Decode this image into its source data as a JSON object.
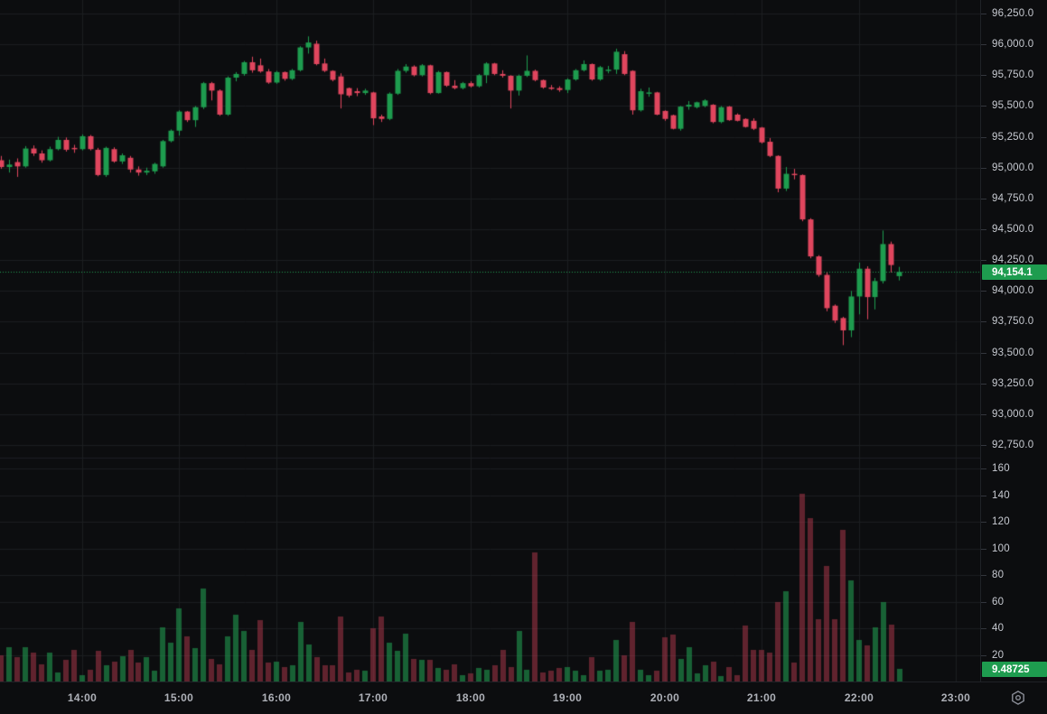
{
  "colors": {
    "background": "#0c0d0f",
    "grid": "#1b1d21",
    "axis_border": "#1f2227",
    "axis_text": "#c7cad1",
    "time_text": "#aeb1b8",
    "candle_up": "#1e9c4f",
    "candle_down": "#e0465e",
    "volume_up": "rgba(32,150,78,0.62)",
    "volume_down": "rgba(200,62,84,0.45)",
    "last_price_line": "#1e9c4f",
    "badge_up_bg": "#1e9c4f",
    "badge_text": "#ffffff",
    "icon_gray": "#8b8e98"
  },
  "price_axis": {
    "ticks": [
      [
        "96,250.0",
        96250
      ],
      [
        "96,000.0",
        96000
      ],
      [
        "95,750.0",
        95750
      ],
      [
        "95,500.0",
        95500
      ],
      [
        "95,250.0",
        95250
      ],
      [
        "95,000.0",
        95000
      ],
      [
        "94,750.0",
        94750
      ],
      [
        "94,500.0",
        94500
      ],
      [
        "94,250.0",
        94250
      ],
      [
        "94,000.0",
        94000
      ],
      [
        "93,750.0",
        93750
      ],
      [
        "93,500.0",
        93500
      ],
      [
        "93,250.0",
        93250
      ],
      [
        "93,000.0",
        93000
      ],
      [
        "92,750.0",
        92750
      ]
    ]
  },
  "volume_axis": {
    "ticks": [
      [
        "160",
        160
      ],
      [
        "140",
        140
      ],
      [
        "120",
        120
      ],
      [
        "100",
        100
      ],
      [
        "80",
        80
      ],
      [
        "60",
        60
      ],
      [
        "40",
        40
      ],
      [
        "20",
        20
      ]
    ]
  },
  "time_axis": {
    "ticks": [
      [
        "14:00",
        840
      ],
      [
        "15:00",
        900
      ],
      [
        "16:00",
        960
      ],
      [
        "17:00",
        1020
      ],
      [
        "18:00",
        1080
      ],
      [
        "19:00",
        1140
      ],
      [
        "20:00",
        1200
      ],
      [
        "21:00",
        1260
      ],
      [
        "22:00",
        1320
      ],
      [
        "23:00",
        1380
      ]
    ]
  },
  "badges": {
    "last_price": {
      "text": "94,154.1",
      "value": 94154.1
    },
    "last_volume": {
      "text": "9.48725",
      "value": 9.48725
    }
  },
  "toolbar": {
    "settings_icon": "hexagon-settings"
  },
  "chart_data": {
    "type": "candlestick",
    "interval": "5m",
    "session_start_minutes": 790,
    "price_axis_top": 96250,
    "price_axis_bottom": 92750,
    "price_tick_step": 250,
    "volume_axis_max": 160,
    "grid": true,
    "last_price": 94154.1,
    "candles": [
      [
        "13:10",
        95060,
        95095,
        94990,
        95005,
        20
      ],
      [
        "13:15",
        95005,
        95065,
        94960,
        95025,
        26
      ],
      [
        "13:20",
        95045,
        95075,
        94925,
        95010,
        18
      ],
      [
        "13:25",
        95010,
        95175,
        95000,
        95155,
        26
      ],
      [
        "13:30",
        95155,
        95180,
        95095,
        95115,
        22
      ],
      [
        "13:35",
        95115,
        95140,
        95040,
        95060,
        13
      ],
      [
        "13:40",
        95060,
        95170,
        95050,
        95150,
        22
      ],
      [
        "13:45",
        95150,
        95250,
        95140,
        95225,
        7
      ],
      [
        "13:50",
        95225,
        95245,
        95130,
        95145,
        16
      ],
      [
        "13:55",
        95160,
        95185,
        95120,
        95150,
        24
      ],
      [
        "14:00",
        95150,
        95270,
        95140,
        95255,
        5
      ],
      [
        "14:05",
        95255,
        95265,
        95140,
        95150,
        9
      ],
      [
        "14:10",
        95145,
        95160,
        94930,
        94940,
        23
      ],
      [
        "14:15",
        94940,
        95170,
        94925,
        95160,
        12
      ],
      [
        "14:20",
        95150,
        95165,
        95040,
        95050,
        15
      ],
      [
        "14:25",
        95050,
        95115,
        95030,
        95100,
        19
      ],
      [
        "14:30",
        95080,
        95095,
        94960,
        94985,
        24
      ],
      [
        "14:35",
        94985,
        95010,
        94935,
        94960,
        14
      ],
      [
        "14:40",
        94960,
        95000,
        94940,
        94975,
        18
      ],
      [
        "14:45",
        94970,
        95040,
        94950,
        95030,
        8
      ],
      [
        "14:50",
        95010,
        95225,
        95000,
        95215,
        41
      ],
      [
        "14:55",
        95215,
        95310,
        95205,
        95300,
        29
      ],
      [
        "15:00",
        95300,
        95465,
        95260,
        95455,
        55
      ],
      [
        "15:05",
        95455,
        95460,
        95370,
        95385,
        34
      ],
      [
        "15:10",
        95385,
        95500,
        95330,
        95490,
        25
      ],
      [
        "15:15",
        95490,
        95695,
        95475,
        95685,
        70
      ],
      [
        "15:20",
        95685,
        95695,
        95545,
        95625,
        17
      ],
      [
        "15:25",
        95625,
        95635,
        95420,
        95430,
        13
      ],
      [
        "15:30",
        95430,
        95740,
        95420,
        95730,
        34
      ],
      [
        "15:35",
        95730,
        95775,
        95700,
        95760,
        50
      ],
      [
        "15:40",
        95760,
        95865,
        95745,
        95855,
        38
      ],
      [
        "15:45",
        95855,
        95900,
        95770,
        95790,
        24
      ],
      [
        "15:50",
        95830,
        95885,
        95770,
        95780,
        46
      ],
      [
        "15:55",
        95780,
        95800,
        95680,
        95690,
        14
      ],
      [
        "16:00",
        95690,
        95785,
        95680,
        95775,
        15
      ],
      [
        "16:05",
        95775,
        95780,
        95705,
        95720,
        11
      ],
      [
        "16:10",
        95720,
        95800,
        95710,
        95790,
        12
      ],
      [
        "16:15",
        95790,
        95985,
        95780,
        95975,
        45
      ],
      [
        "16:20",
        95975,
        96065,
        95925,
        96015,
        28
      ],
      [
        "16:25",
        96005,
        96030,
        95830,
        95840,
        18
      ],
      [
        "16:30",
        95845,
        95885,
        95775,
        95785,
        12
      ],
      [
        "16:35",
        95785,
        95790,
        95700,
        95712,
        12
      ],
      [
        "16:40",
        95740,
        95765,
        95480,
        95595,
        49
      ],
      [
        "16:45",
        95645,
        95650,
        95570,
        95585,
        7
      ],
      [
        "16:50",
        95620,
        95645,
        95580,
        95605,
        9
      ],
      [
        "16:55",
        95605,
        95640,
        95590,
        95625,
        8
      ],
      [
        "17:00",
        95610,
        95615,
        95345,
        95400,
        40
      ],
      [
        "17:05",
        95415,
        95430,
        95370,
        95395,
        49
      ],
      [
        "17:10",
        95395,
        95610,
        95385,
        95600,
        29
      ],
      [
        "17:15",
        95600,
        95800,
        95590,
        95785,
        23
      ],
      [
        "17:20",
        95785,
        95840,
        95770,
        95820,
        36
      ],
      [
        "17:25",
        95820,
        95830,
        95740,
        95750,
        17
      ],
      [
        "17:30",
        95750,
        95840,
        95740,
        95830,
        16
      ],
      [
        "17:35",
        95830,
        95835,
        95595,
        95605,
        16
      ],
      [
        "17:40",
        95605,
        95785,
        95600,
        95775,
        10
      ],
      [
        "17:45",
        95775,
        95780,
        95655,
        95665,
        9
      ],
      [
        "17:50",
        95665,
        95710,
        95635,
        95645,
        13
      ],
      [
        "17:55",
        95645,
        95695,
        95635,
        95685,
        5
      ],
      [
        "18:00",
        95685,
        95700,
        95650,
        95660,
        6
      ],
      [
        "18:05",
        95660,
        95760,
        95650,
        95750,
        10
      ],
      [
        "18:10",
        95750,
        95855,
        95685,
        95845,
        9
      ],
      [
        "18:15",
        95845,
        95850,
        95750,
        95760,
        12
      ],
      [
        "18:20",
        95760,
        95790,
        95730,
        95745,
        24
      ],
      [
        "18:25",
        95745,
        95750,
        95480,
        95625,
        11
      ],
      [
        "18:30",
        95625,
        95755,
        95585,
        95745,
        38
      ],
      [
        "18:35",
        95745,
        95910,
        95735,
        95785,
        9
      ],
      [
        "18:40",
        95785,
        95795,
        95700,
        95710,
        97
      ],
      [
        "18:45",
        95710,
        95715,
        95640,
        95650,
        7
      ],
      [
        "18:50",
        95650,
        95670,
        95630,
        95645,
        8
      ],
      [
        "18:55",
        95645,
        95660,
        95615,
        95630,
        10
      ],
      [
        "19:00",
        95630,
        95725,
        95605,
        95715,
        11
      ],
      [
        "19:05",
        95715,
        95800,
        95705,
        95790,
        8
      ],
      [
        "19:10",
        95790,
        95870,
        95780,
        95840,
        5
      ],
      [
        "19:15",
        95840,
        95845,
        95705,
        95715,
        18
      ],
      [
        "19:20",
        95715,
        95825,
        95705,
        95815,
        8
      ],
      [
        "19:25",
        95790,
        95825,
        95765,
        95795,
        9
      ],
      [
        "19:30",
        95795,
        95965,
        95760,
        95940,
        31
      ],
      [
        "19:35",
        95920,
        95945,
        95750,
        95760,
        20
      ],
      [
        "19:40",
        95785,
        95790,
        95430,
        95465,
        45
      ],
      [
        "19:45",
        95465,
        95640,
        95455,
        95620,
        9
      ],
      [
        "19:50",
        95600,
        95650,
        95575,
        95610,
        5
      ],
      [
        "19:55",
        95610,
        95615,
        95425,
        95430,
        8
      ],
      [
        "20:00",
        95460,
        95465,
        95380,
        95395,
        33
      ],
      [
        "20:05",
        95425,
        95430,
        95310,
        95315,
        35
      ],
      [
        "20:10",
        95315,
        95500,
        95300,
        95495,
        17
      ],
      [
        "20:15",
        95495,
        95540,
        95470,
        95510,
        26
      ],
      [
        "20:20",
        95490,
        95535,
        95480,
        95530,
        6
      ],
      [
        "20:25",
        95500,
        95555,
        95490,
        95545,
        12
      ],
      [
        "20:30",
        95510,
        95515,
        95360,
        95370,
        15
      ],
      [
        "20:35",
        95370,
        95500,
        95360,
        95490,
        4
      ],
      [
        "20:40",
        95495,
        95500,
        95380,
        95385,
        11
      ],
      [
        "20:45",
        95430,
        95440,
        95375,
        95380,
        5
      ],
      [
        "20:50",
        95395,
        95400,
        95325,
        95330,
        42
      ],
      [
        "20:55",
        95380,
        95400,
        95305,
        95315,
        24
      ],
      [
        "21:00",
        95325,
        95330,
        95195,
        95205,
        24
      ],
      [
        "21:05",
        95210,
        95240,
        95085,
        95095,
        22
      ],
      [
        "21:10",
        95095,
        95100,
        94800,
        94830,
        60
      ],
      [
        "21:15",
        94830,
        95005,
        94810,
        94950,
        68
      ],
      [
        "21:20",
        94950,
        94990,
        94905,
        94940,
        14
      ],
      [
        "21:25",
        94940,
        94945,
        94565,
        94580,
        141
      ],
      [
        "21:30",
        94580,
        94590,
        94265,
        94280,
        123
      ],
      [
        "21:35",
        94280,
        94290,
        94115,
        94130,
        47
      ],
      [
        "21:40",
        94130,
        94150,
        93835,
        93860,
        87
      ],
      [
        "21:45",
        93880,
        93890,
        93740,
        93760,
        47
      ],
      [
        "21:50",
        93780,
        93790,
        93560,
        93680,
        114
      ],
      [
        "21:55",
        93680,
        94000,
        93625,
        93955,
        76
      ],
      [
        "22:00",
        93955,
        94230,
        93810,
        94180,
        31
      ],
      [
        "22:05",
        94180,
        94200,
        93770,
        93950,
        27
      ],
      [
        "22:10",
        93950,
        94105,
        93850,
        94080,
        41
      ],
      [
        "22:15",
        94080,
        94490,
        94060,
        94380,
        60
      ],
      [
        "22:20",
        94380,
        94400,
        94150,
        94210,
        43
      ],
      [
        "22:25",
        94120,
        94195,
        94085,
        94154.1,
        9.48725
      ]
    ]
  }
}
